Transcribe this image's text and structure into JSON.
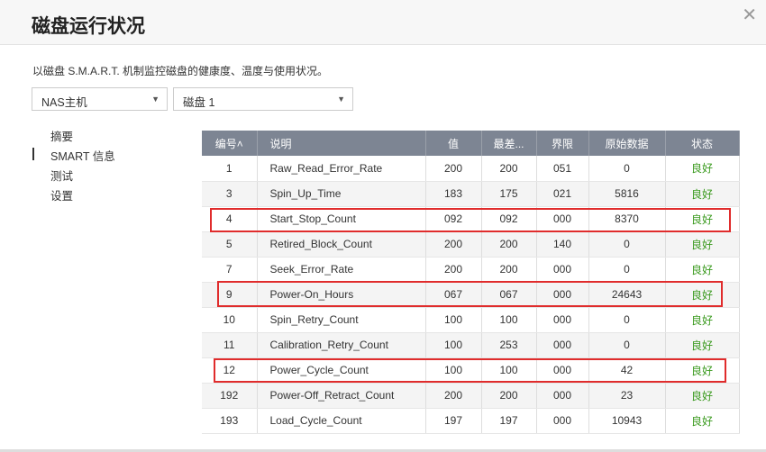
{
  "title": "磁盘运行状况",
  "description": "以磁盘 S.M.A.R.T. 机制监控磁盘的健康度、温度与使用状况。",
  "selects": {
    "host": "NAS主机",
    "disk": "磁盘 1"
  },
  "nav": [
    {
      "label": "摘要",
      "active": false
    },
    {
      "label": "SMART 信息",
      "active": true
    },
    {
      "label": "测试",
      "active": false
    },
    {
      "label": "设置",
      "active": false
    }
  ],
  "table": {
    "headers": [
      "编号˄",
      "说明",
      "值",
      "最差...",
      "界限",
      "原始数据",
      "状态"
    ],
    "rows": [
      [
        "1",
        "Raw_Read_Error_Rate",
        "200",
        "200",
        "051",
        "0",
        "良好"
      ],
      [
        "3",
        "Spin_Up_Time",
        "183",
        "175",
        "021",
        "5816",
        "良好"
      ],
      [
        "4",
        "Start_Stop_Count",
        "092",
        "092",
        "000",
        "8370",
        "良好"
      ],
      [
        "5",
        "Retired_Block_Count",
        "200",
        "200",
        "140",
        "0",
        "良好"
      ],
      [
        "7",
        "Seek_Error_Rate",
        "200",
        "200",
        "000",
        "0",
        "良好"
      ],
      [
        "9",
        "Power-On_Hours",
        "067",
        "067",
        "000",
        "24643",
        "良好"
      ],
      [
        "10",
        "Spin_Retry_Count",
        "100",
        "100",
        "000",
        "0",
        "良好"
      ],
      [
        "11",
        "Calibration_Retry_Count",
        "100",
        "253",
        "000",
        "0",
        "良好"
      ],
      [
        "12",
        "Power_Cycle_Count",
        "100",
        "100",
        "000",
        "42",
        "良好"
      ],
      [
        "192",
        "Power-Off_Retract_Count",
        "200",
        "200",
        "000",
        "23",
        "良好"
      ],
      [
        "193",
        "Load_Cycle_Count",
        "197",
        "197",
        "000",
        "10943",
        "良好"
      ]
    ]
  },
  "highlighted_rows": [
    "4",
    "9",
    "12"
  ],
  "colors": {
    "header": "#7d8593",
    "ok": "#3a9a1e",
    "highlight": "#e02c2c"
  }
}
